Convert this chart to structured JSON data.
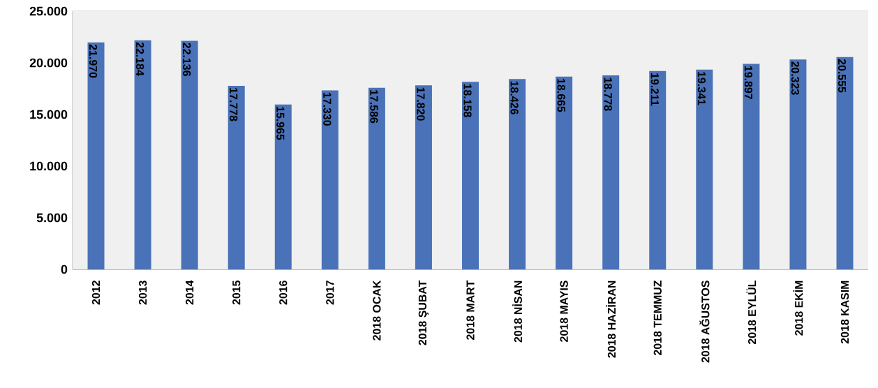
{
  "chart_data": {
    "type": "bar",
    "categories": [
      "2012",
      "2013",
      "2014",
      "2015",
      "2016",
      "2017",
      "2018 OCAK",
      "2018 ŞUBAT",
      "2018 MART",
      "2018 NİSAN",
      "2018 MAYIS",
      "2018 HAZİRAN",
      "2018 TEMMUZ",
      "2018 AĞUSTOS",
      "2018 EYLÜL",
      "2018 EKİM",
      "2018 KASIM"
    ],
    "values": [
      21970,
      22184,
      22136,
      17778,
      15965,
      17330,
      17586,
      17820,
      18158,
      18426,
      18665,
      18778,
      19211,
      19341,
      19897,
      20323,
      20555
    ],
    "value_labels": [
      "21.970",
      "22.184",
      "22.136",
      "17.778",
      "15.965",
      "17.330",
      "17.586",
      "17.820",
      "18.158",
      "18.426",
      "18.665",
      "18.778",
      "19.211",
      "19.341",
      "19.897",
      "20.323",
      "20.555"
    ],
    "color": "#4a72b8",
    "ylim": [
      0,
      25000
    ],
    "yticks": [
      {
        "value": 0,
        "label": "0"
      },
      {
        "value": 5000,
        "label": "5.000"
      },
      {
        "value": 10000,
        "label": "10.000"
      },
      {
        "value": 15000,
        "label": "15.000"
      },
      {
        "value": 20000,
        "label": "20.000"
      },
      {
        "value": 25000,
        "label": "25.000"
      }
    ],
    "grid": "y"
  }
}
